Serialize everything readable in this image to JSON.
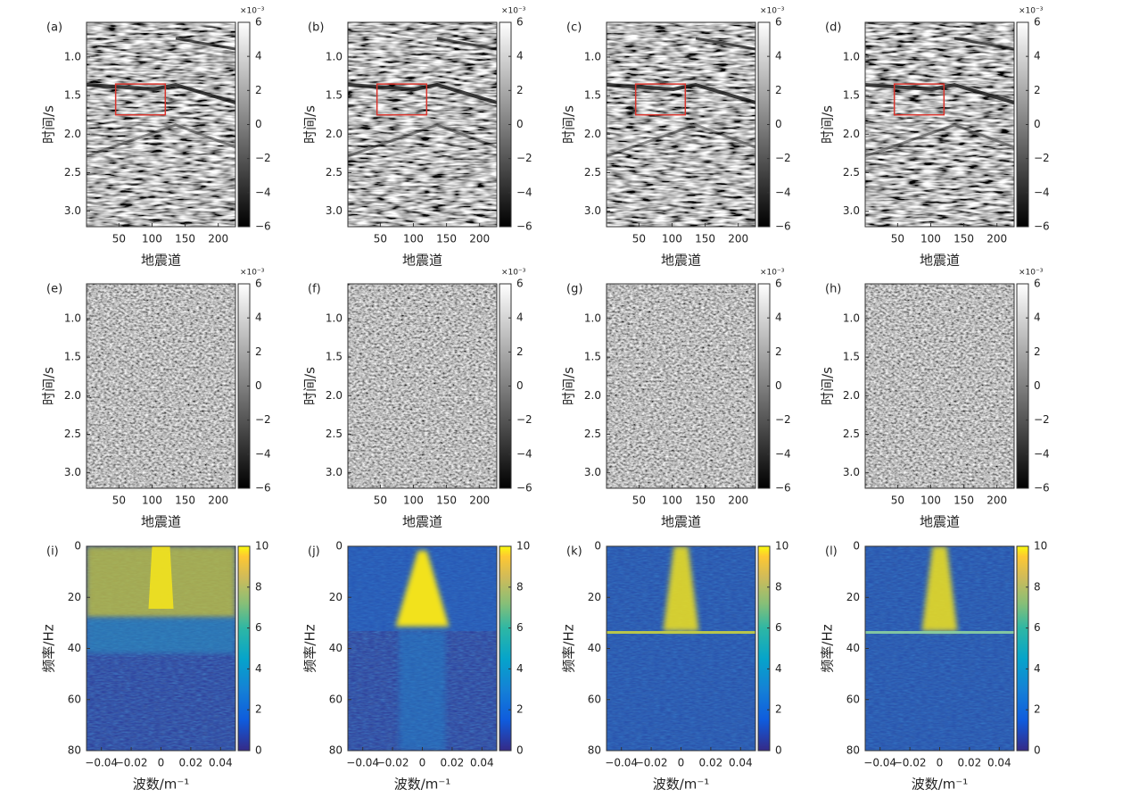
{
  "chart_data": [
    {
      "type": "heatmap",
      "panel": "(a)",
      "colormap": "gray",
      "xlabel": "地震道",
      "ylabel": "时间/s",
      "xlim": [
        1,
        226
      ],
      "ylim": [
        0.55,
        3.2
      ],
      "xticks": [
        50,
        100,
        150,
        200
      ],
      "yticks": [
        {
          "value": 1,
          "label": "1.0"
        },
        1.5,
        {
          "value": 2,
          "label": "2.0"
        },
        2.5,
        {
          "value": 3,
          "label": "3.0"
        }
      ],
      "colorbar": {
        "lim": [
          -6,
          6
        ],
        "ticks": [
          {
            "value": -6,
            "label": "−6"
          },
          {
            "value": -4,
            "label": "−4"
          },
          {
            "value": -2,
            "label": "−2"
          },
          0,
          2,
          4,
          6
        ],
        "multiplier": "×10⁻³"
      },
      "highlight": {
        "x": [
          45,
          120
        ],
        "y": [
          1.35,
          1.75
        ],
        "color": "#d9332b"
      }
    },
    {
      "type": "heatmap",
      "panel": "(b)",
      "colormap": "gray",
      "xlabel": "地震道",
      "ylabel": "时间/s",
      "xlim": [
        1,
        226
      ],
      "ylim": [
        0.55,
        3.2
      ],
      "xticks": [
        50,
        100,
        150,
        200
      ],
      "yticks": [
        {
          "value": 1,
          "label": "1.0"
        },
        1.5,
        {
          "value": 2,
          "label": "2.0"
        },
        2.5,
        {
          "value": 3,
          "label": "3.0"
        }
      ],
      "colorbar": {
        "lim": [
          -6,
          6
        ],
        "ticks": [
          {
            "value": -6,
            "label": "−6"
          },
          {
            "value": -4,
            "label": "−4"
          },
          {
            "value": -2,
            "label": "−2"
          },
          0,
          2,
          4,
          6
        ],
        "multiplier": "×10⁻³"
      },
      "highlight": {
        "x": [
          45,
          120
        ],
        "y": [
          1.35,
          1.75
        ],
        "color": "#d9332b"
      }
    },
    {
      "type": "heatmap",
      "panel": "(c)",
      "colormap": "gray",
      "xlabel": "地震道",
      "ylabel": "时间/s",
      "xlim": [
        1,
        226
      ],
      "ylim": [
        0.55,
        3.2
      ],
      "xticks": [
        50,
        100,
        150,
        200
      ],
      "yticks": [
        {
          "value": 1,
          "label": "1.0"
        },
        1.5,
        {
          "value": 2,
          "label": "2.0"
        },
        2.5,
        {
          "value": 3,
          "label": "3.0"
        }
      ],
      "colorbar": {
        "lim": [
          -6,
          6
        ],
        "ticks": [
          {
            "value": -6,
            "label": "−6"
          },
          {
            "value": -4,
            "label": "−4"
          },
          {
            "value": -2,
            "label": "−2"
          },
          0,
          2,
          4,
          6
        ],
        "multiplier": "×10⁻³"
      },
      "highlight": {
        "x": [
          45,
          120
        ],
        "y": [
          1.35,
          1.75
        ],
        "color": "#d9332b"
      }
    },
    {
      "type": "heatmap",
      "panel": "(d)",
      "colormap": "gray",
      "xlabel": "地震道",
      "ylabel": "时间/s",
      "xlim": [
        1,
        226
      ],
      "ylim": [
        0.55,
        3.2
      ],
      "xticks": [
        50,
        100,
        150,
        200
      ],
      "yticks": [
        {
          "value": 1,
          "label": "1.0"
        },
        1.5,
        {
          "value": 2,
          "label": "2.0"
        },
        2.5,
        {
          "value": 3,
          "label": "3.0"
        }
      ],
      "colorbar": {
        "lim": [
          -6,
          6
        ],
        "ticks": [
          {
            "value": -6,
            "label": "−6"
          },
          {
            "value": -4,
            "label": "−4"
          },
          {
            "value": -2,
            "label": "−2"
          },
          0,
          2,
          4,
          6
        ],
        "multiplier": "×10⁻³"
      },
      "highlight": {
        "x": [
          45,
          120
        ],
        "y": [
          1.35,
          1.75
        ],
        "color": "#d9332b"
      }
    },
    {
      "type": "heatmap",
      "panel": "(e)",
      "colormap": "gray",
      "xlabel": "地震道",
      "ylabel": "时间/s",
      "xlim": [
        1,
        226
      ],
      "ylim": [
        0.55,
        3.2
      ],
      "xticks": [
        50,
        100,
        150,
        200
      ],
      "yticks": [
        {
          "value": 1,
          "label": "1.0"
        },
        1.5,
        {
          "value": 2,
          "label": "2.0"
        },
        2.5,
        {
          "value": 3,
          "label": "3.0"
        }
      ],
      "colorbar": {
        "lim": [
          -6,
          6
        ],
        "ticks": [
          {
            "value": -6,
            "label": "−6"
          },
          {
            "value": -4,
            "label": "−4"
          },
          {
            "value": -2,
            "label": "−2"
          },
          0,
          2,
          4,
          6
        ],
        "multiplier": "×10⁻³"
      }
    },
    {
      "type": "heatmap",
      "panel": "(f)",
      "colormap": "gray",
      "xlabel": "地震道",
      "ylabel": "时间/s",
      "xlim": [
        1,
        226
      ],
      "ylim": [
        0.55,
        3.2
      ],
      "xticks": [
        50,
        100,
        150,
        200
      ],
      "yticks": [
        {
          "value": 1,
          "label": "1.0"
        },
        1.5,
        {
          "value": 2,
          "label": "2.0"
        },
        2.5,
        {
          "value": 3,
          "label": "3.0"
        }
      ],
      "colorbar": {
        "lim": [
          -6,
          6
        ],
        "ticks": [
          {
            "value": -6,
            "label": "−6"
          },
          {
            "value": -4,
            "label": "−4"
          },
          {
            "value": -2,
            "label": "−2"
          },
          0,
          2,
          4,
          6
        ],
        "multiplier": "×10⁻³"
      }
    },
    {
      "type": "heatmap",
      "panel": "(g)",
      "colormap": "gray",
      "xlabel": "地震道",
      "ylabel": "时间/s",
      "xlim": [
        1,
        226
      ],
      "ylim": [
        0.55,
        3.2
      ],
      "xticks": [
        50,
        100,
        150,
        200
      ],
      "yticks": [
        {
          "value": 1,
          "label": "1.0"
        },
        1.5,
        {
          "value": 2,
          "label": "2.0"
        },
        2.5,
        {
          "value": 3,
          "label": "3.0"
        }
      ],
      "colorbar": {
        "lim": [
          -6,
          6
        ],
        "ticks": [
          {
            "value": -6,
            "label": "−6"
          },
          {
            "value": -4,
            "label": "−4"
          },
          {
            "value": -2,
            "label": "−2"
          },
          0,
          2,
          4,
          6
        ],
        "multiplier": "×10⁻³"
      }
    },
    {
      "type": "heatmap",
      "panel": "(h)",
      "colormap": "gray",
      "xlabel": "地震道",
      "ylabel": "时间/s",
      "xlim": [
        1,
        226
      ],
      "ylim": [
        0.55,
        3.2
      ],
      "xticks": [
        50,
        100,
        150,
        200
      ],
      "yticks": [
        {
          "value": 1,
          "label": "1.0"
        },
        1.5,
        {
          "value": 2,
          "label": "2.0"
        },
        2.5,
        {
          "value": 3,
          "label": "3.0"
        }
      ],
      "colorbar": {
        "lim": [
          -6,
          6
        ],
        "ticks": [
          {
            "value": -6,
            "label": "−6"
          },
          {
            "value": -4,
            "label": "−4"
          },
          {
            "value": -2,
            "label": "−2"
          },
          0,
          2,
          4,
          6
        ],
        "multiplier": "×10⁻³"
      }
    },
    {
      "type": "heatmap",
      "panel": "(i)",
      "colormap": "parula",
      "xlabel": "波数/m⁻¹",
      "ylabel": "频率/Hz",
      "xlim": [
        -0.05,
        0.05
      ],
      "ylim": [
        0,
        80
      ],
      "xticks": [
        {
          "value": -0.04,
          "label": "−0.04"
        },
        {
          "value": -0.02,
          "label": "−0.02"
        },
        0,
        0.02,
        0.04
      ],
      "yticks": [
        0,
        20,
        40,
        60,
        80
      ],
      "colorbar": {
        "lim": [
          0,
          10
        ],
        "ticks": [
          0,
          2,
          4,
          6,
          8,
          10
        ]
      }
    },
    {
      "type": "heatmap",
      "panel": "(j)",
      "colormap": "parula",
      "xlabel": "波数/m⁻¹",
      "ylabel": "频率/Hz",
      "xlim": [
        -0.05,
        0.05
      ],
      "ylim": [
        0,
        80
      ],
      "xticks": [
        {
          "value": -0.04,
          "label": "−0.04"
        },
        {
          "value": -0.02,
          "label": "−0.02"
        },
        0,
        0.02,
        0.04
      ],
      "yticks": [
        0,
        20,
        40,
        60,
        80
      ],
      "colorbar": {
        "lim": [
          0,
          10
        ],
        "ticks": [
          0,
          2,
          4,
          6,
          8,
          10
        ]
      }
    },
    {
      "type": "heatmap",
      "panel": "(k)",
      "colormap": "parula",
      "xlabel": "波数/m⁻¹",
      "ylabel": "频率/Hz",
      "xlim": [
        -0.05,
        0.05
      ],
      "ylim": [
        0,
        80
      ],
      "xticks": [
        {
          "value": -0.04,
          "label": "−0.04"
        },
        {
          "value": -0.02,
          "label": "−0.02"
        },
        0,
        0.02,
        0.04
      ],
      "yticks": [
        0,
        20,
        40,
        60,
        80
      ],
      "colorbar": {
        "lim": [
          0,
          10
        ],
        "ticks": [
          0,
          2,
          4,
          6,
          8,
          10
        ]
      }
    },
    {
      "type": "heatmap",
      "panel": "(l)",
      "colormap": "parula",
      "xlabel": "波数/m⁻¹",
      "ylabel": "频率/Hz",
      "xlim": [
        -0.05,
        0.05
      ],
      "ylim": [
        0,
        80
      ],
      "xticks": [
        {
          "value": -0.04,
          "label": "−0.04"
        },
        {
          "value": -0.02,
          "label": "−0.02"
        },
        0,
        0.02,
        0.04
      ],
      "yticks": [
        0,
        20,
        40,
        60,
        80
      ],
      "colorbar": {
        "lim": [
          0,
          10
        ],
        "ticks": [
          0,
          2,
          4,
          6,
          8,
          10
        ]
      }
    }
  ]
}
